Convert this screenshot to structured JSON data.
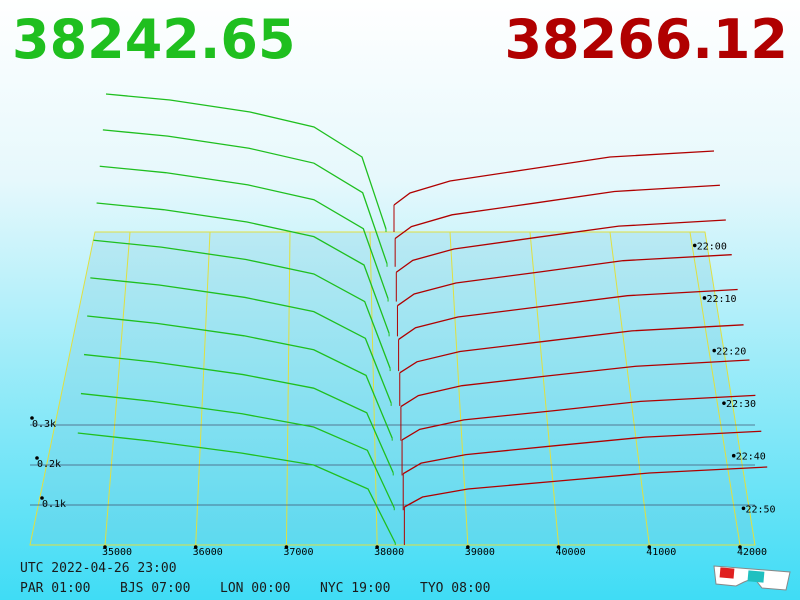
{
  "chart_data": {
    "type": "depth3d",
    "bid": 38242.65,
    "ask": 38266.12,
    "bid_color": "#1fbf1f",
    "ask_color": "#b00000",
    "xlim": [
      35000,
      42000
    ],
    "xticks": [
      35000,
      36000,
      37000,
      38000,
      39000,
      40000,
      41000,
      42000
    ],
    "yticks": [
      {
        "value": 100,
        "label": "0.1k"
      },
      {
        "value": 200,
        "label": "0.2k"
      },
      {
        "value": 300,
        "label": "0.3k"
      }
    ],
    "time_labels": [
      "22:00",
      "22:10",
      "22:20",
      "22:30",
      "22:40",
      "22:50"
    ],
    "bid_prices": [
      34700,
      35500,
      36500,
      37300,
      37900,
      38200
    ],
    "ask_prices": [
      38300,
      38500,
      39000,
      40000,
      41000,
      42300
    ],
    "snapshots": [
      {
        "bids": [
          460,
          440,
          400,
          350,
          250,
          10
        ],
        "asks": [
          90,
          130,
          170,
          210,
          250,
          270
        ]
      },
      {
        "bids": [
          440,
          420,
          381,
          333,
          238,
          10
        ],
        "asks": [
          91,
          129,
          167,
          204,
          242,
          262
        ]
      },
      {
        "bids": [
          420,
          400,
          362,
          316,
          226,
          9
        ],
        "asks": [
          91,
          128,
          163,
          199,
          234,
          253
        ]
      },
      {
        "bids": [
          400,
          380,
          343,
          299,
          214,
          9
        ],
        "asks": [
          92,
          127,
          160,
          193,
          227,
          245
        ]
      },
      {
        "bids": [
          380,
          360,
          324,
          282,
          202,
          8
        ],
        "asks": [
          92,
          126,
          157,
          188,
          219,
          237
        ]
      },
      {
        "bids": [
          360,
          340,
          305,
          265,
          190,
          8
        ],
        "asks": [
          93,
          124,
          153,
          182,
          211,
          228
        ]
      },
      {
        "bids": [
          340,
          320,
          286,
          248,
          178,
          7
        ],
        "asks": [
          93,
          123,
          150,
          177,
          203,
          220
        ]
      },
      {
        "bids": [
          320,
          300,
          267,
          231,
          166,
          7
        ],
        "asks": [
          94,
          122,
          147,
          171,
          196,
          212
        ]
      },
      {
        "bids": [
          300,
          280,
          248,
          214,
          154,
          6
        ],
        "asks": [
          94,
          121,
          143,
          166,
          188,
          203
        ]
      },
      {
        "bids": [
          280,
          260,
          230,
          200,
          140,
          5
        ],
        "asks": [
          95,
          120,
          140,
          160,
          180,
          195
        ]
      }
    ]
  },
  "footer": {
    "utc": "UTC 2022-04-26 23:00",
    "zones": [
      "PAR 01:00",
      "BJS 07:00",
      "LON 00:00",
      "NYC 19:00",
      "TYO 08:00"
    ]
  }
}
